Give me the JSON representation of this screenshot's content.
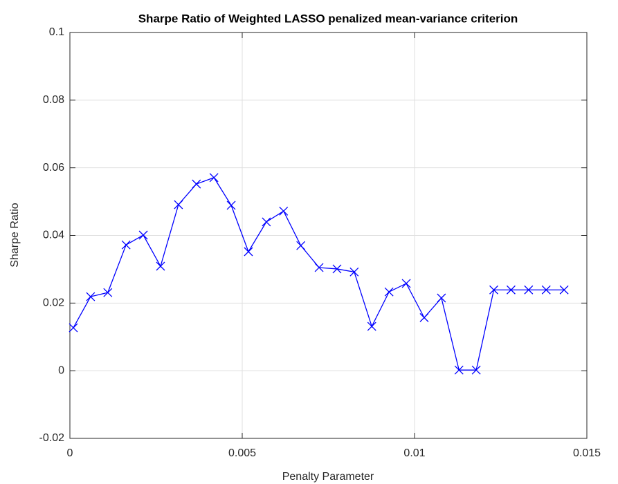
{
  "chart_data": {
    "type": "line",
    "title": "Sharpe Ratio of Weighted LASSO penalized mean-variance criterion",
    "xlabel": "Penalty Parameter",
    "ylabel": "Sharpe Ratio",
    "x": [
      0.0001,
      0.0006,
      0.0011,
      0.00163,
      0.00213,
      0.00263,
      0.00315,
      0.00367,
      0.00418,
      0.00468,
      0.00518,
      0.0057,
      0.0062,
      0.0067,
      0.00723,
      0.00775,
      0.00825,
      0.00876,
      0.00926,
      0.00976,
      0.01028,
      0.01078,
      0.01129,
      0.01179,
      0.0123,
      0.0128,
      0.01331,
      0.01382,
      0.01434
    ],
    "series": [
      {
        "color": "#0000ff",
        "marker": "x",
        "values": [
          0.0127,
          0.0219,
          0.0231,
          0.0372,
          0.0401,
          0.0309,
          0.0491,
          0.0552,
          0.0571,
          0.0489,
          0.0352,
          0.044,
          0.0472,
          0.037,
          0.0305,
          0.0301,
          0.0292,
          0.0131,
          0.0233,
          0.0258,
          0.0157,
          0.0215,
          0.0002,
          0.0002,
          0.0239,
          0.0239,
          0.0239,
          0.0239,
          0.0239
        ]
      }
    ],
    "xlim": [
      0,
      0.015
    ],
    "xticks": [
      0,
      0.005,
      0.01,
      0.015
    ],
    "ylim": [
      -0.02,
      0.1
    ],
    "yticks": [
      -0.02,
      0,
      0.02,
      0.04,
      0.06,
      0.08,
      0.1
    ],
    "grid": true
  }
}
